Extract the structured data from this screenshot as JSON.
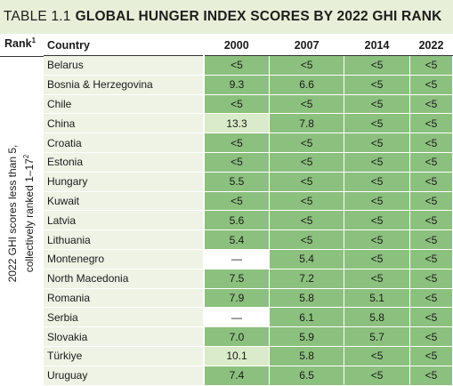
{
  "title": {
    "number": "TABLE 1.1",
    "text": "GLOBAL HUNGER INDEX SCORES BY 2022 GHI RANK"
  },
  "header": {
    "rank": "Rank",
    "rank_sup": "1",
    "country": "Country",
    "years": [
      "2000",
      "2007",
      "2014",
      "2022"
    ]
  },
  "group_label": {
    "line1": "2022 GHI scores less than 5,",
    "line2": "collectively ranked 1–17",
    "line2_sup": "2"
  },
  "rows": [
    {
      "country": "Belarus",
      "values": [
        "<5",
        "<5",
        "<5",
        "<5"
      ]
    },
    {
      "country": "Bosnia & Herzegovina",
      "values": [
        "9.3",
        "6.6",
        "<5",
        "<5"
      ]
    },
    {
      "country": "Chile",
      "values": [
        "<5",
        "<5",
        "<5",
        "<5"
      ]
    },
    {
      "country": "China",
      "values": [
        "13.3",
        "7.8",
        "<5",
        "<5"
      ]
    },
    {
      "country": "Croatia",
      "values": [
        "<5",
        "<5",
        "<5",
        "<5"
      ]
    },
    {
      "country": "Estonia",
      "values": [
        "<5",
        "<5",
        "<5",
        "<5"
      ]
    },
    {
      "country": "Hungary",
      "values": [
        "5.5",
        "<5",
        "<5",
        "<5"
      ]
    },
    {
      "country": "Kuwait",
      "values": [
        "<5",
        "<5",
        "<5",
        "<5"
      ]
    },
    {
      "country": "Latvia",
      "values": [
        "5.6",
        "<5",
        "<5",
        "<5"
      ]
    },
    {
      "country": "Lithuania",
      "values": [
        "5.4",
        "<5",
        "<5",
        "<5"
      ]
    },
    {
      "country": "Montenegro",
      "values": [
        "—",
        "5.4",
        "<5",
        "<5"
      ]
    },
    {
      "country": "North Macedonia",
      "values": [
        "7.5",
        "7.2",
        "<5",
        "<5"
      ]
    },
    {
      "country": "Romania",
      "values": [
        "7.9",
        "5.8",
        "5.1",
        "<5"
      ]
    },
    {
      "country": "Serbia",
      "values": [
        "—",
        "6.1",
        "5.8",
        "<5"
      ]
    },
    {
      "country": "Slovakia",
      "values": [
        "7.0",
        "5.9",
        "5.7",
        "<5"
      ]
    },
    {
      "country": "Türkiye",
      "values": [
        "10.1",
        "5.8",
        "<5",
        "<5"
      ]
    },
    {
      "country": "Uruguay",
      "values": [
        "7.4",
        "6.5",
        "<5",
        "<5"
      ]
    }
  ],
  "colors": {
    "low": "#8cc07e",
    "moderate": "#d9ebc8",
    "country_bg": "#eef3e5",
    "title_bg": "#e7efd8"
  }
}
